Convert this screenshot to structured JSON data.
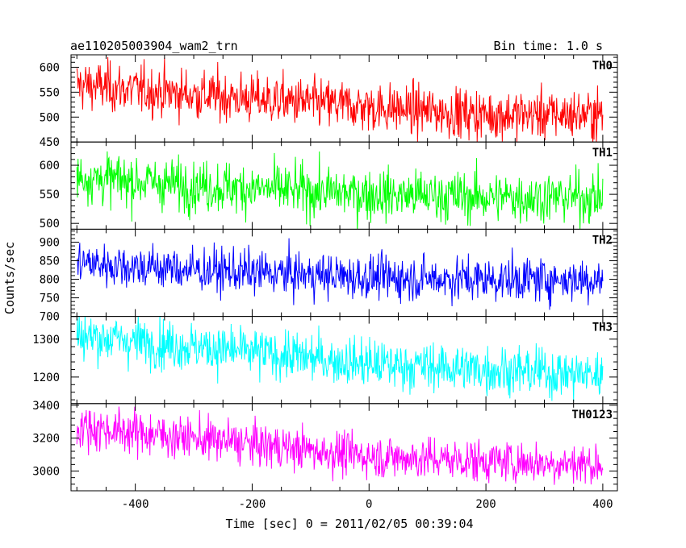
{
  "header": {
    "title": "ae110205003904_wam2_trn",
    "bin_time": "Bin time: 1.0 s"
  },
  "chart_data": {
    "type": "line",
    "xlabel": "Time [sec] 0 = 2011/02/05 00:39:04",
    "ylabel": "Counts/sec",
    "xlim": [
      -510,
      425
    ],
    "data_x_range": [
      -500,
      400
    ],
    "xticks": [
      -400,
      -200,
      0,
      200,
      400
    ],
    "grid": false,
    "panels": [
      {
        "name": "TH0",
        "color": "#ff0000",
        "ylim": [
          450,
          625
        ],
        "yticks": [
          450,
          500,
          550,
          600
        ],
        "trend": [
          [
            -500,
            565
          ],
          [
            -300,
            545
          ],
          [
            0,
            520
          ],
          [
            200,
            505
          ],
          [
            400,
            505
          ]
        ],
        "noise_sd": 25
      },
      {
        "name": "TH1",
        "color": "#00ff00",
        "ylim": [
          490,
          640
        ],
        "yticks": [
          500,
          550,
          600
        ],
        "trend": [
          [
            -500,
            580
          ],
          [
            -300,
            565
          ],
          [
            0,
            550
          ],
          [
            200,
            545
          ],
          [
            400,
            545
          ]
        ],
        "noise_sd": 22
      },
      {
        "name": "TH2",
        "color": "#0000ff",
        "ylim": [
          700,
          935
        ],
        "yticks": [
          700,
          750,
          800,
          850,
          900
        ],
        "trend": [
          [
            -500,
            845
          ],
          [
            -300,
            825
          ],
          [
            0,
            805
          ],
          [
            200,
            800
          ],
          [
            400,
            800
          ]
        ],
        "noise_sd": 30
      },
      {
        "name": "TH3",
        "color": "#00ffff",
        "ylim": [
          1130,
          1360
        ],
        "yticks": [
          1200,
          1300
        ],
        "trend": [
          [
            -500,
            1310
          ],
          [
            -300,
            1280
          ],
          [
            0,
            1235
          ],
          [
            200,
            1220
          ],
          [
            400,
            1205
          ]
        ],
        "noise_sd": 32
      },
      {
        "name": "TH0123",
        "color": "#ff00ff",
        "ylim": [
          2880,
          3410
        ],
        "yticks": [
          3000,
          3200,
          3400
        ],
        "trend": [
          [
            -500,
            3270
          ],
          [
            -300,
            3200
          ],
          [
            0,
            3090
          ],
          [
            200,
            3060
          ],
          [
            400,
            3040
          ]
        ],
        "noise_sd": 65
      }
    ]
  }
}
